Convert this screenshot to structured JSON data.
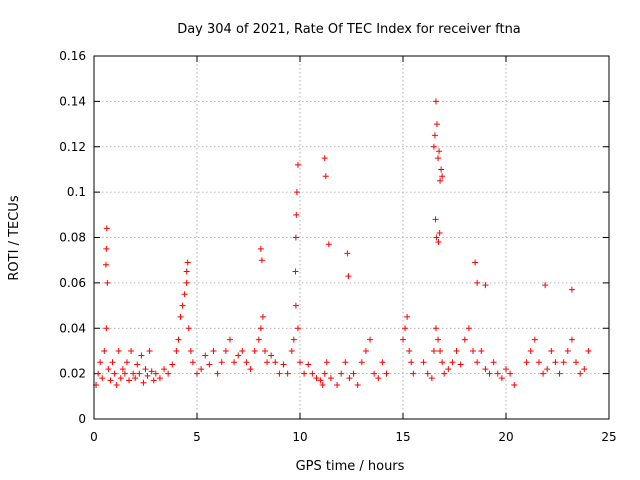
{
  "chart_data": {
    "type": "scatter",
    "title": "Day 304 of 2021, Rate Of TEC Index for receiver ftna",
    "xlabel": "GPS time / hours",
    "ylabel": "ROTI / TECUs",
    "xlim": [
      0,
      25
    ],
    "ylim": [
      0,
      0.16
    ],
    "xticks": [
      "0",
      "5",
      "10",
      "15",
      "20",
      "25"
    ],
    "yticks": [
      "0",
      "0.02",
      "0.04",
      "0.06",
      "0.08",
      "0.1",
      "0.12",
      "0.14",
      "0.16"
    ],
    "grid": true,
    "marker": "+",
    "color": "#ff0000",
    "series": [
      {
        "x": [
          0.1,
          0.2,
          0.3,
          0.4,
          0.5,
          0.6,
          0.7,
          0.8,
          0.9,
          1.0,
          1.1,
          1.2,
          1.3,
          1.4,
          1.5,
          1.6,
          1.7,
          1.8,
          1.9,
          2.0,
          2.1,
          2.2,
          2.3,
          2.4,
          2.5,
          2.6,
          2.7,
          2.8,
          2.9,
          3.0,
          3.2,
          3.4,
          3.6,
          3.8,
          4.0,
          4.1,
          4.2,
          4.3,
          4.4,
          4.5,
          4.6,
          4.7,
          4.8,
          5.0,
          5.2,
          5.4,
          5.6,
          5.8,
          6.0,
          6.2,
          6.4,
          6.6,
          6.8,
          7.0,
          7.2,
          7.4,
          7.6,
          7.8,
          8.0,
          8.1,
          8.2,
          8.3,
          8.4,
          8.6,
          8.8,
          9.0,
          9.2,
          9.4,
          9.6,
          9.7,
          9.8,
          9.9,
          10.0,
          10.2,
          10.4,
          10.6,
          10.8,
          11.0,
          11.1,
          11.2,
          11.3,
          11.5,
          11.8,
          12.0,
          12.2,
          12.4,
          12.6,
          12.8,
          13.0,
          13.2,
          13.4,
          13.6,
          13.8,
          14.0,
          14.2,
          15.0,
          15.1,
          15.2,
          15.3,
          15.4,
          15.5,
          16.0,
          16.2,
          16.4,
          16.5,
          16.6,
          16.7,
          16.8,
          16.9,
          17.0,
          17.2,
          17.4,
          17.6,
          17.8,
          18.0,
          18.2,
          18.4,
          18.6,
          18.8,
          19.0,
          19.2,
          19.4,
          19.6,
          19.8,
          20.0,
          20.2,
          20.4,
          21.0,
          21.2,
          21.4,
          21.6,
          21.8,
          22.0,
          22.2,
          22.4,
          22.6,
          22.8,
          23.0,
          23.2,
          23.4,
          23.6,
          23.8,
          24.0,
          0.6,
          0.62,
          0.58,
          0.65,
          4.5,
          4.55,
          8.1,
          8.15,
          9.8,
          9.82,
          9.85,
          9.78,
          9.9,
          11.2,
          11.25,
          11.4,
          12.3,
          12.35,
          16.5,
          16.55,
          16.6,
          16.65,
          16.7,
          16.75,
          16.8,
          16.85,
          16.9,
          16.58,
          16.62,
          16.72,
          16.78,
          18.5,
          18.6,
          19.0,
          21.9,
          23.2
        ],
        "y": [
          0.015,
          0.02,
          0.025,
          0.018,
          0.03,
          0.04,
          0.022,
          0.017,
          0.025,
          0.02,
          0.015,
          0.03,
          0.018,
          0.022,
          0.02,
          0.025,
          0.017,
          0.03,
          0.02,
          0.018,
          0.024,
          0.02,
          0.028,
          0.016,
          0.022,
          0.019,
          0.03,
          0.021,
          0.017,
          0.02,
          0.018,
          0.022,
          0.02,
          0.024,
          0.03,
          0.035,
          0.045,
          0.05,
          0.055,
          0.06,
          0.04,
          0.03,
          0.025,
          0.02,
          0.022,
          0.028,
          0.024,
          0.03,
          0.02,
          0.025,
          0.03,
          0.035,
          0.025,
          0.028,
          0.03,
          0.025,
          0.022,
          0.03,
          0.035,
          0.04,
          0.045,
          0.03,
          0.025,
          0.028,
          0.025,
          0.02,
          0.024,
          0.02,
          0.03,
          0.035,
          0.05,
          0.04,
          0.025,
          0.02,
          0.024,
          0.02,
          0.018,
          0.017,
          0.015,
          0.02,
          0.025,
          0.018,
          0.015,
          0.02,
          0.025,
          0.018,
          0.02,
          0.015,
          0.025,
          0.03,
          0.035,
          0.02,
          0.018,
          0.025,
          0.02,
          0.035,
          0.04,
          0.045,
          0.03,
          0.025,
          0.02,
          0.025,
          0.02,
          0.018,
          0.03,
          0.04,
          0.035,
          0.03,
          0.025,
          0.02,
          0.022,
          0.025,
          0.03,
          0.024,
          0.035,
          0.04,
          0.03,
          0.025,
          0.03,
          0.022,
          0.02,
          0.025,
          0.02,
          0.018,
          0.022,
          0.02,
          0.015,
          0.025,
          0.03,
          0.035,
          0.025,
          0.02,
          0.022,
          0.03,
          0.025,
          0.02,
          0.025,
          0.03,
          0.035,
          0.025,
          0.02,
          0.022,
          0.03,
          0.075,
          0.084,
          0.068,
          0.06,
          0.065,
          0.069,
          0.075,
          0.07,
          0.08,
          0.09,
          0.1,
          0.065,
          0.112,
          0.115,
          0.107,
          0.077,
          0.073,
          0.063,
          0.12,
          0.125,
          0.14,
          0.13,
          0.115,
          0.118,
          0.105,
          0.11,
          0.107,
          0.088,
          0.08,
          0.078,
          0.082,
          0.069,
          0.06,
          0.059,
          0.059,
          0.057
        ]
      }
    ]
  }
}
